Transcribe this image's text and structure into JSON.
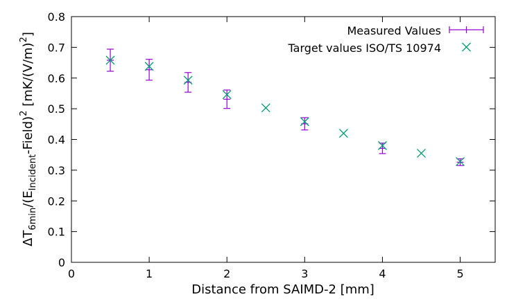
{
  "chart_data": {
    "type": "scatter",
    "xlabel": "Distance from SAIMD-2 [mm]",
    "ylabel_parts": {
      "delta": "ΔT",
      "sub1": "6min",
      "mid": "/(E",
      "sub2": "Incident",
      "mid2": "-Field)",
      "sup1": "2",
      "unit": " [mK/(V/m)",
      "sup2": "2",
      "end": "]"
    },
    "xlim": [
      0,
      5.45
    ],
    "ylim": [
      0,
      0.8
    ],
    "x_ticks": [
      "0",
      "1",
      "2",
      "3",
      "4",
      "5"
    ],
    "y_ticks": [
      "0",
      "0.1",
      "0.2",
      "0.3",
      "0.4",
      "0.5",
      "0.6",
      "0.7",
      "0.8"
    ],
    "legend_position": "top-right",
    "series": [
      {
        "name": "Measured Values",
        "style": "errorbars",
        "color": "#9400d3",
        "points": [
          {
            "x": 0.5,
            "y": 0.658,
            "err": 0.036
          },
          {
            "x": 1.0,
            "y": 0.627,
            "err": 0.034
          },
          {
            "x": 1.5,
            "y": 0.586,
            "err": 0.032
          },
          {
            "x": 2.0,
            "y": 0.531,
            "err": 0.03
          },
          {
            "x": 3.0,
            "y": 0.451,
            "err": 0.02
          },
          {
            "x": 4.0,
            "y": 0.371,
            "err": 0.017
          },
          {
            "x": 5.0,
            "y": 0.326,
            "err": 0.011
          }
        ]
      },
      {
        "name": "Target values ISO/TS 10974",
        "style": "cross",
        "color": "#009e73",
        "points": [
          {
            "x": 0.5,
            "y": 0.658
          },
          {
            "x": 1.0,
            "y": 0.638
          },
          {
            "x": 1.5,
            "y": 0.593
          },
          {
            "x": 2.0,
            "y": 0.546
          },
          {
            "x": 2.5,
            "y": 0.503
          },
          {
            "x": 3.0,
            "y": 0.458
          },
          {
            "x": 3.5,
            "y": 0.42
          },
          {
            "x": 4.0,
            "y": 0.38
          },
          {
            "x": 4.5,
            "y": 0.355
          },
          {
            "x": 5.0,
            "y": 0.328
          }
        ]
      }
    ]
  }
}
